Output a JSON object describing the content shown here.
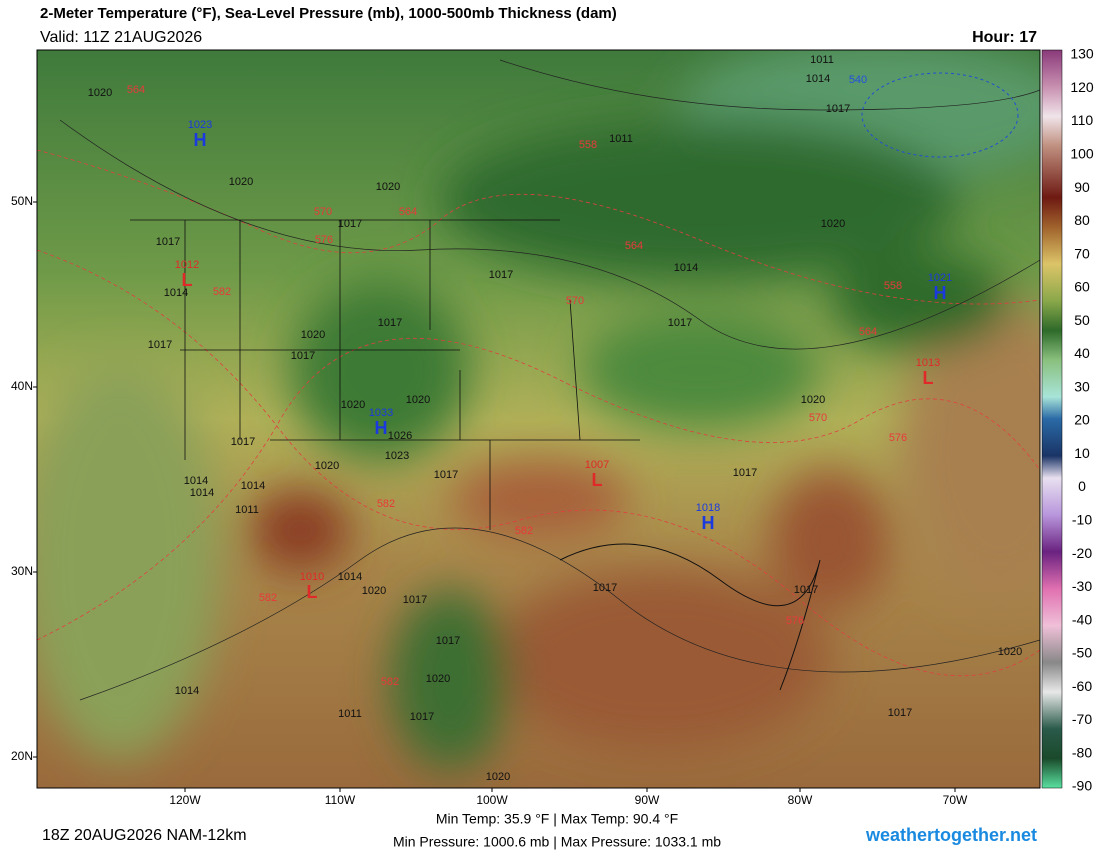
{
  "header": {
    "title": "2-Meter Temperature (°F), Sea-Level Pressure (mb), 1000-500mb Thickness (dam)",
    "valid": "Valid: 11Z 21AUG2026",
    "hour": "Hour: 17"
  },
  "map": {
    "lat_labels": [
      "50N",
      "40N",
      "30N",
      "20N"
    ],
    "lon_labels": [
      "120W",
      "110W",
      "100W",
      "90W",
      "80W",
      "70W"
    ],
    "pressure_centers": [
      {
        "letter": "H",
        "value": "1023"
      },
      {
        "letter": "L",
        "value": "1012"
      },
      {
        "letter": "H",
        "value": "1033"
      },
      {
        "letter": "L",
        "value": "1007"
      },
      {
        "letter": "H",
        "value": "1018"
      },
      {
        "letter": "L",
        "value": "1010"
      },
      {
        "letter": "H",
        "value": "1021"
      },
      {
        "letter": "L",
        "value": "1013"
      }
    ],
    "isobar_labels": [
      "1020",
      "1011",
      "1020",
      "1017",
      "1017",
      "1014",
      "1017",
      "1017",
      "1020",
      "1017",
      "1017",
      "1014",
      "1017",
      "1020",
      "1011",
      "1014",
      "1017",
      "1020",
      "1020",
      "1020",
      "1026",
      "1023",
      "1017",
      "1017",
      "1020",
      "1014",
      "1014",
      "1014",
      "1011",
      "1014",
      "1020",
      "1017",
      "1017",
      "1020",
      "1017",
      "1011",
      "1014",
      "1017",
      "1017",
      "1017",
      "1020",
      "1020",
      "1017",
      "1020"
    ],
    "thickness_labels": [
      "564",
      "558",
      "570",
      "564",
      "576",
      "564",
      "570",
      "582",
      "558",
      "564",
      "570",
      "576",
      "582",
      "582",
      "582",
      "582",
      "576",
      "540"
    ]
  },
  "colorbar": {
    "ticks": [
      130,
      120,
      110,
      100,
      90,
      80,
      70,
      60,
      50,
      40,
      30,
      20,
      10,
      0,
      -10,
      -20,
      -30,
      -40,
      -50,
      -60,
      -70,
      -80,
      -90
    ]
  },
  "footer": {
    "min_max_temp": "Min Temp:  35.9 °F | Max Temp:  90.4 °F",
    "min_max_pressure": "Min Pressure: 1000.6 mb | Max Pressure: 1033.1 mb",
    "run": "18Z 20AUG2026 NAM-12km",
    "site": "weathertogether.net"
  }
}
